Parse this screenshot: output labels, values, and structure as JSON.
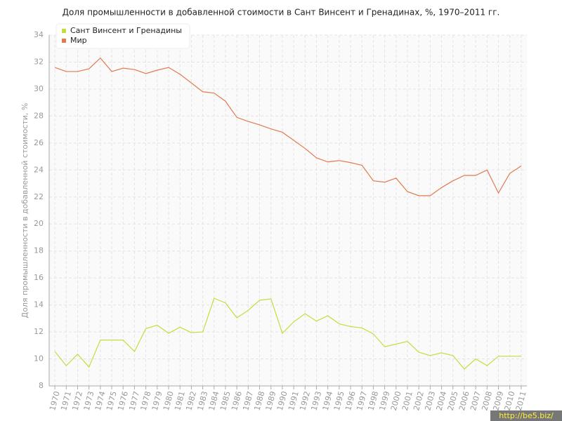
{
  "chart_data": {
    "type": "line",
    "title": "Доля промышленности в добавленной стоимости в Сант Винсент и Гренадинах, %, 1970–2011 гг.",
    "ylabel": "Доля промышленности в добавленной стоимости, %",
    "watermark": "http://be5.biz/",
    "categories": [
      "1970",
      "1971",
      "1972",
      "1973",
      "1974",
      "1975",
      "1976",
      "1977",
      "1978",
      "1979",
      "1980",
      "1981",
      "1982",
      "1983",
      "1984",
      "1985",
      "1986",
      "1987",
      "1988",
      "1989",
      "1990",
      "1991",
      "1992",
      "1993",
      "1994",
      "1995",
      "1996",
      "1997",
      "1998",
      "1999",
      "2000",
      "2001",
      "2002",
      "2003",
      "2004",
      "2005",
      "2006",
      "2007",
      "2008",
      "2009",
      "2010",
      "2011"
    ],
    "series": [
      {
        "name": "Сант Винсент и Гренадины",
        "color": "#c6dc3e",
        "values": [
          10.55,
          9.5,
          10.35,
          9.4,
          11.4,
          11.4,
          11.4,
          10.55,
          12.25,
          12.5,
          11.9,
          12.35,
          11.95,
          12.0,
          14.5,
          14.15,
          13.05,
          13.6,
          14.35,
          14.45,
          11.9,
          12.75,
          13.35,
          12.8,
          13.2,
          12.6,
          12.4,
          12.3,
          11.85,
          10.9,
          11.1,
          11.3,
          10.5,
          10.25,
          10.45,
          10.25,
          9.25,
          10.0,
          9.5,
          10.2,
          10.2,
          10.2
        ]
      },
      {
        "name": "Мир",
        "color": "#e07a50",
        "values": [
          31.6,
          31.3,
          31.3,
          31.5,
          32.3,
          31.3,
          31.55,
          31.45,
          31.15,
          31.4,
          31.6,
          31.1,
          30.45,
          29.8,
          29.7,
          29.1,
          27.9,
          27.6,
          27.35,
          27.05,
          26.8,
          26.2,
          25.6,
          24.9,
          24.6,
          24.7,
          24.55,
          24.35,
          23.2,
          23.1,
          23.4,
          22.4,
          22.1,
          22.1,
          22.7,
          23.2,
          23.6,
          23.6,
          24.0,
          22.3,
          23.75,
          24.3
        ]
      }
    ],
    "ylim": [
      8,
      34
    ],
    "yticks": [
      8,
      10,
      12,
      14,
      16,
      18,
      20,
      22,
      24,
      26,
      28,
      30,
      32,
      34
    ],
    "grid": true,
    "legend": "top-left"
  }
}
